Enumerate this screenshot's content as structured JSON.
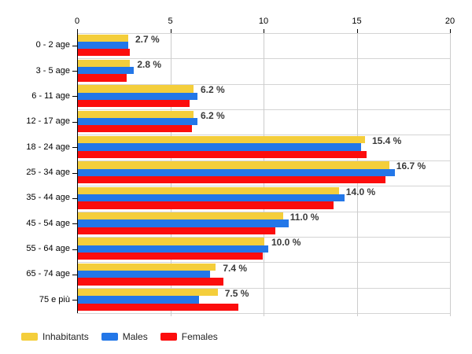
{
  "chart_data": {
    "type": "bar",
    "orientation": "horizontal",
    "title": "",
    "xlabel": "",
    "ylabel": "",
    "xlim": [
      0,
      20
    ],
    "x_ticks": [
      0,
      5,
      10,
      15,
      20
    ],
    "grid": true,
    "legend_position": "bottom-left",
    "categories": [
      "0 - 2 age",
      "3 - 5 age",
      "6 - 11 age",
      "12 - 17 age",
      "18 - 24 age",
      "25 - 34 age",
      "35 - 44 age",
      "45 - 54 age",
      "55 - 64 age",
      "65 - 74 age",
      "75 e più"
    ],
    "series": [
      {
        "name": "Inhabitants",
        "color": "#F4CE3B",
        "values": [
          2.7,
          2.8,
          6.2,
          6.2,
          15.4,
          16.7,
          14.0,
          11.0,
          10.0,
          7.4,
          7.5
        ]
      },
      {
        "name": "Males",
        "color": "#2377E8",
        "values": [
          2.7,
          3.0,
          6.4,
          6.4,
          15.2,
          17.0,
          14.3,
          11.3,
          10.2,
          7.1,
          6.5
        ]
      },
      {
        "name": "Females",
        "color": "#FC0D0D",
        "values": [
          2.8,
          2.6,
          6.0,
          6.1,
          15.5,
          16.5,
          13.7,
          10.6,
          9.9,
          7.8,
          8.6
        ]
      }
    ],
    "data_labels": [
      "2.7 %",
      "2.8 %",
      "6.2 %",
      "6.2 %",
      "15.4 %",
      "16.7 %",
      "14.0 %",
      "11.0 %",
      "10.0 %",
      "7.4 %",
      "7.5 %"
    ]
  },
  "colors": {
    "gridline": "#cccccc",
    "axis": "#000000",
    "data_label": "#3a3a3a"
  },
  "legend": {
    "items": [
      {
        "label": "Inhabitants",
        "color": "#F4CE3B"
      },
      {
        "label": "Males",
        "color": "#2377E8"
      },
      {
        "label": "Females",
        "color": "#FC0D0D"
      }
    ]
  }
}
